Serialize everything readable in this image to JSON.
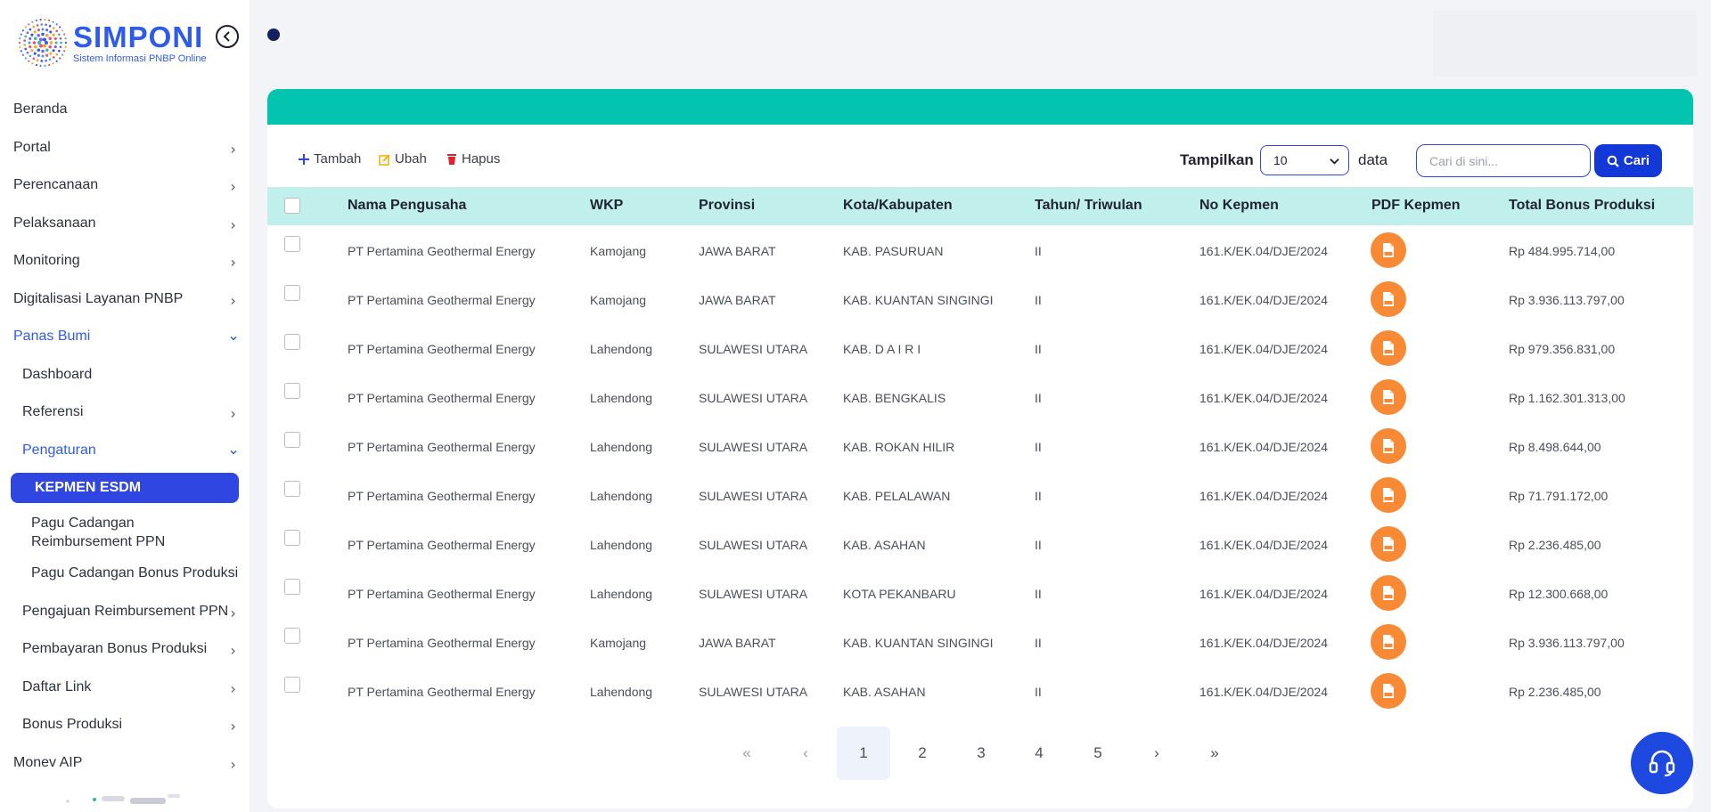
{
  "brand": {
    "title": "SIMPONI",
    "subtitle": "Sistem Informasi PNBP Online"
  },
  "sidebar": {
    "items": [
      {
        "label": "Beranda",
        "level": 1,
        "chevron": "none"
      },
      {
        "label": "Portal",
        "level": 1,
        "chevron": "right"
      },
      {
        "label": "Perencanaan",
        "level": 1,
        "chevron": "right"
      },
      {
        "label": "Pelaksanaan",
        "level": 1,
        "chevron": "right"
      },
      {
        "label": "Monitoring",
        "level": 1,
        "chevron": "right"
      },
      {
        "label": "Digitalisasi Layanan PNBP",
        "level": 1,
        "chevron": "right"
      },
      {
        "label": "Panas Bumi",
        "level": 1,
        "chevron": "down",
        "state": "open"
      },
      {
        "label": "Dashboard",
        "level": 2,
        "chevron": "none"
      },
      {
        "label": "Referensi",
        "level": 2,
        "chevron": "right"
      },
      {
        "label": "Pengaturan",
        "level": 2,
        "chevron": "down",
        "state": "open"
      },
      {
        "label": "KEPMEN ESDM",
        "level": 3,
        "chevron": "none",
        "state": "active"
      },
      {
        "label": "Pagu Cadangan Reimbursement PPN",
        "level": 3,
        "chevron": "none"
      },
      {
        "label": "Pagu Cadangan Bonus Produksi",
        "level": 3,
        "chevron": "none"
      },
      {
        "label": "Pengajuan Reimbursement PPN",
        "level": 2,
        "chevron": "right"
      },
      {
        "label": "Pembayaran Bonus Produksi",
        "level": 2,
        "chevron": "right"
      },
      {
        "label": "Daftar Link",
        "level": 2,
        "chevron": "right"
      },
      {
        "label": "Bonus Produksi",
        "level": 2,
        "chevron": "right"
      },
      {
        "label": "Monev AIP",
        "level": 1,
        "chevron": "right"
      }
    ]
  },
  "toolbar": {
    "add_label": "Tambah",
    "edit_label": "Ubah",
    "delete_label": "Hapus",
    "show_label": "Tampilkan",
    "page_size": "10",
    "data_label": "data",
    "search_placeholder": "Cari di sini...",
    "search_button": "Cari"
  },
  "table": {
    "columns": [
      "Nama Pengusaha",
      "WKP",
      "Provinsi",
      "Kota/Kabupaten",
      "Tahun/ Triwulan",
      "No Kepmen",
      "PDF Kepmen",
      "Total Bonus Produksi"
    ],
    "rows": [
      [
        "PT Pertamina Geothermal Energy",
        "Kamojang",
        "JAWA BARAT",
        "KAB. PASURUAN",
        "II",
        "161.K/EK.04/DJE/2024",
        "Rp 484.995.714,00"
      ],
      [
        "PT Pertamina Geothermal Energy",
        "Kamojang",
        "JAWA BARAT",
        "KAB. KUANTAN SINGINGI",
        "II",
        "161.K/EK.04/DJE/2024",
        "Rp 3.936.113.797,00"
      ],
      [
        "PT Pertamina Geothermal Energy",
        "Lahendong",
        "SULAWESI UTARA",
        "KAB. D A I R I",
        "II",
        "161.K/EK.04/DJE/2024",
        "Rp 979.356.831,00"
      ],
      [
        "PT Pertamina Geothermal Energy",
        "Lahendong",
        "SULAWESI UTARA",
        "KAB. BENGKALIS",
        "II",
        "161.K/EK.04/DJE/2024",
        "Rp 1.162.301.313,00"
      ],
      [
        "PT Pertamina Geothermal Energy",
        "Lahendong",
        "SULAWESI UTARA",
        "KAB. ROKAN HILIR",
        "II",
        "161.K/EK.04/DJE/2024",
        "Rp 8.498.644,00"
      ],
      [
        "PT Pertamina Geothermal Energy",
        "Lahendong",
        "SULAWESI UTARA",
        "KAB. PELALAWAN",
        "II",
        "161.K/EK.04/DJE/2024",
        "Rp 71.791.172,00"
      ],
      [
        "PT Pertamina Geothermal Energy",
        "Lahendong",
        "SULAWESI UTARA",
        "KAB. ASAHAN",
        "II",
        "161.K/EK.04/DJE/2024",
        "Rp 2.236.485,00"
      ],
      [
        "PT Pertamina Geothermal Energy",
        "Lahendong",
        "SULAWESI UTARA",
        "KOTA PEKANBARU",
        "II",
        "161.K/EK.04/DJE/2024",
        "Rp 12.300.668,00"
      ],
      [
        "PT Pertamina Geothermal Energy",
        "Kamojang",
        "JAWA BARAT",
        "KAB. KUANTAN SINGINGI",
        "II",
        "161.K/EK.04/DJE/2024",
        "Rp 3.936.113.797,00"
      ],
      [
        "PT Pertamina Geothermal Energy",
        "Lahendong",
        "SULAWESI UTARA",
        "KAB. ASAHAN",
        "II",
        "161.K/EK.04/DJE/2024",
        "Rp 2.236.485,00"
      ]
    ]
  },
  "pagination": {
    "first": "«",
    "prev": "‹",
    "pages": [
      "1",
      "2",
      "3",
      "4",
      "5"
    ],
    "current": "1",
    "next": "›",
    "last": "»"
  },
  "icons": {
    "collapse": "chevron-left-circle-icon",
    "add": "plus-icon",
    "edit": "pencil-icon",
    "delete": "trash-icon",
    "search": "magnifier-icon",
    "pdf": "pdf-file-icon",
    "help": "headset-icon"
  },
  "colors": {
    "accent_teal": "#03c4ae",
    "header_row": "#c1efeb",
    "primary_blue": "#2f46e0",
    "pdf_orange": "#f88a36"
  }
}
